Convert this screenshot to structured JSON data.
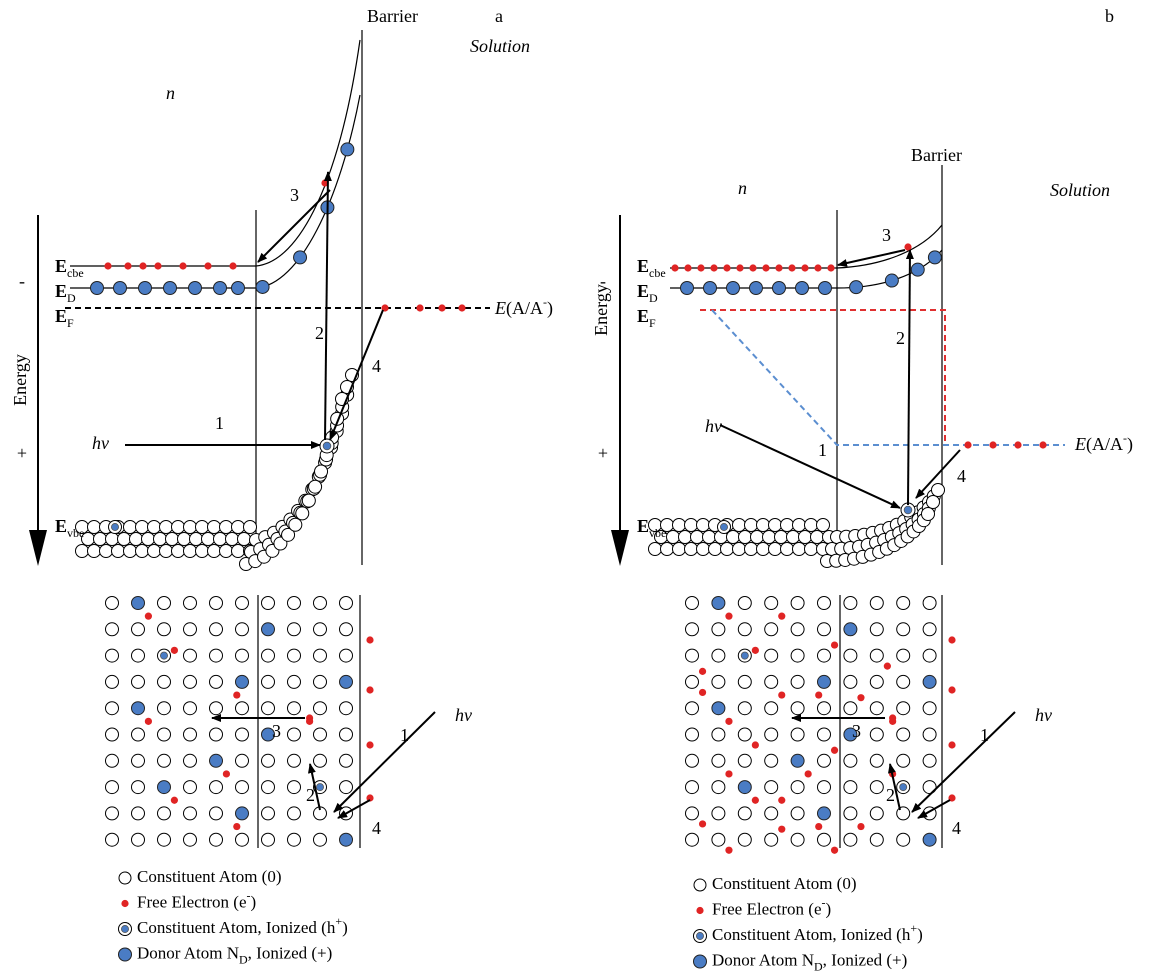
{
  "panels": [
    {
      "letter": "a",
      "barrier": "Barrier",
      "solution": "Solution",
      "region": "n",
      "energy": "Energy",
      "minus": "-",
      "plus": "+",
      "levels": {
        "cbe": {
          "main": "E",
          "sub": "cbe"
        },
        "d": {
          "main": "E",
          "sub": "D"
        },
        "f": {
          "main": "E",
          "sub": "F"
        },
        "vbe": {
          "main": "E",
          "sub": "vbe"
        }
      },
      "redox": {
        "main": "E",
        "rest": "(A/A",
        "sup": "-",
        "close": ")"
      },
      "band_arrows": {
        "hv": "hv",
        "steps": [
          "1",
          "2",
          "3",
          "4"
        ]
      },
      "lattice_arrows": {
        "hv": "hv",
        "steps": [
          "1",
          "2",
          "3",
          "4"
        ]
      },
      "legend": [
        {
          "text": "Constituent Atom (0)"
        },
        {
          "text": "Free Electron (e",
          "sup": "-",
          "after": ")"
        },
        {
          "text": "Constituent Atom, Ionized (h",
          "sup": "+",
          "after": ")"
        },
        {
          "text": "Donor Atom N",
          "sub": "D",
          "after": ", Ionized (+)"
        }
      ]
    },
    {
      "letter": "b",
      "barrier": "Barrier",
      "solution": "Solution",
      "region": "n",
      "energy": "Energy",
      "minus": "-",
      "plus": "+",
      "levels": {
        "cbe": {
          "main": "E",
          "sub": "cbe"
        },
        "d": {
          "main": "E",
          "sub": "D"
        },
        "f": {
          "main": "E",
          "sub": "F"
        },
        "vbe": {
          "main": "E",
          "sub": "vbe"
        }
      },
      "redox": {
        "main": "E",
        "rest": "(A/A",
        "sup": "-",
        "close": ")"
      },
      "band_arrows": {
        "hv": "hv",
        "steps": [
          "1",
          "2",
          "3",
          "4"
        ]
      },
      "lattice_arrows": {
        "hv": "hv",
        "steps": [
          "1",
          "2",
          "3",
          "4"
        ]
      },
      "legend": [
        {
          "text": "Constituent Atom (0)"
        },
        {
          "text": "Free Electron (e",
          "sup": "-",
          "after": ")"
        },
        {
          "text": "Constituent Atom, Ionized (h",
          "sup": "+",
          "after": ")"
        },
        {
          "text": "Donor Atom N",
          "sub": "D",
          "after": ", Ionized (+)"
        }
      ]
    }
  ]
}
